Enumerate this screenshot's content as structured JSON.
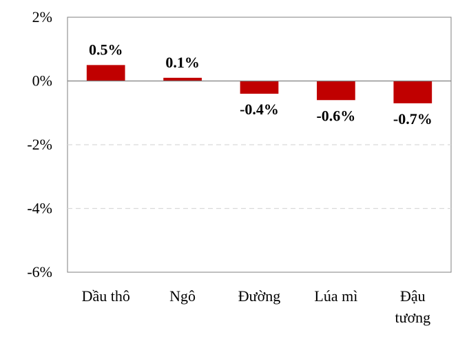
{
  "chart_data": {
    "type": "bar",
    "categories": [
      [
        "Dầu thô"
      ],
      [
        "Ngô"
      ],
      [
        "Đường"
      ],
      [
        "Lúa mì"
      ],
      [
        "Đậu",
        "tương"
      ]
    ],
    "values": [
      0.5,
      0.1,
      -0.4,
      -0.6,
      -0.7
    ],
    "value_labels": [
      "0.5%",
      "0.1%",
      "-0.4%",
      "-0.6%",
      "-0.7%"
    ],
    "ylim": [
      -6,
      2
    ],
    "yticks": [
      2,
      0,
      -2,
      -4,
      -6
    ],
    "ytick_labels": [
      "2%",
      "0%",
      "-2%",
      "-4%",
      "-6%"
    ],
    "bar_color": "#c00000",
    "grid": "dashed horizontal",
    "legend": "none"
  }
}
